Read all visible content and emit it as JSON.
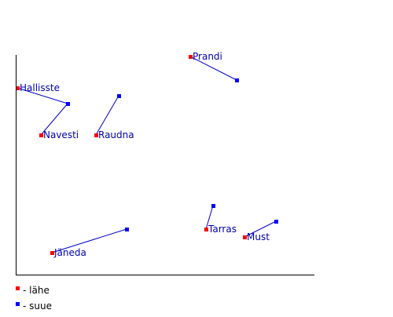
{
  "chart_data": {
    "type": "scatter",
    "title": "",
    "xlabel": "",
    "ylabel": "",
    "grid": false,
    "axis_ticks": false,
    "legend_position": "bottom-left",
    "colors": {
      "start_marker": "#ff0000",
      "end_marker": "#0000ff",
      "connector": "#0000cc",
      "label_text": "#0000aa",
      "legend_text": "#000000",
      "axis": "#000000"
    },
    "legend": [
      {
        "key": "start",
        "label": "- lähe"
      },
      {
        "key": "end",
        "label": "- suue"
      }
    ],
    "series": [
      {
        "name": "Prandi",
        "start": [
          222,
          328
        ],
        "end": [
          281,
          298
        ]
      },
      {
        "name": "Hallisste",
        "start": [
          2,
          288
        ],
        "end": [
          66,
          268
        ]
      },
      {
        "name": "Navesti",
        "start": [
          32,
          228
        ],
        "end": [
          66,
          268
        ]
      },
      {
        "name": "Raudna",
        "start": [
          102,
          228
        ],
        "end": [
          131,
          278
        ]
      },
      {
        "name": "Tarras",
        "start": [
          242,
          108
        ],
        "end": [
          251,
          138
        ]
      },
      {
        "name": "Must",
        "start": [
          291,
          98
        ],
        "end": [
          331,
          118
        ]
      },
      {
        "name": "Jäneda",
        "start": [
          46,
          78
        ],
        "end": [
          141,
          108
        ]
      }
    ],
    "xlim": [
      0,
      380
    ],
    "ylim": [
      50,
      330
    ]
  }
}
